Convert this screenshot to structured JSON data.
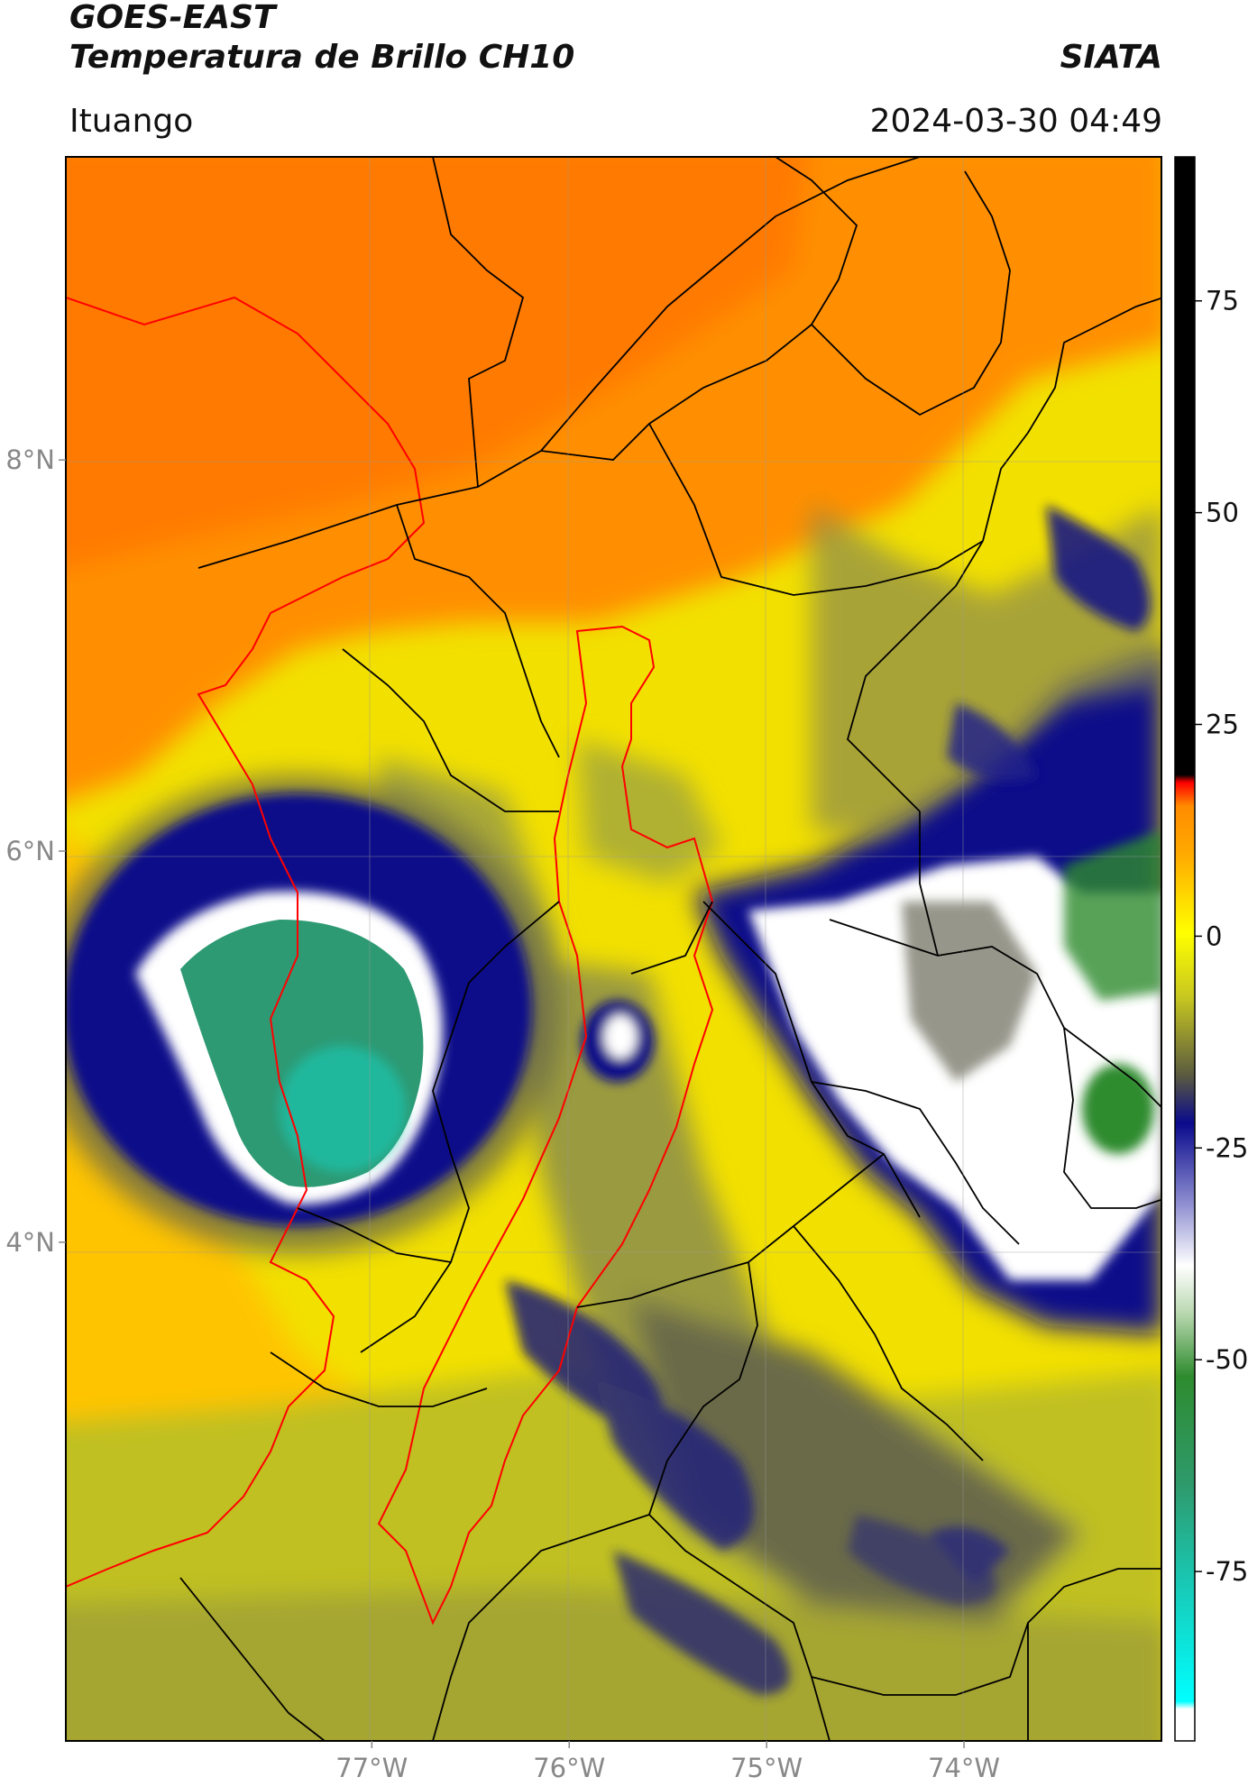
{
  "header": {
    "satellite": "GOES-EAST",
    "product": "Temperatura de Brillo CH10",
    "organization": "SIATA",
    "location": "Ituango",
    "timestamp": "2024-03-30 04:49"
  },
  "map": {
    "lon_range": [
      -78.55,
      -73.0
    ],
    "lat_range": [
      1.45,
      9.55
    ],
    "lon_ticks": [
      {
        "value": -77,
        "label": "77°W"
      },
      {
        "value": -76,
        "label": "76°W"
      },
      {
        "value": -75,
        "label": "75°W"
      },
      {
        "value": -74,
        "label": "74°W"
      }
    ],
    "lat_ticks": [
      {
        "value": 8,
        "label": "8°N"
      },
      {
        "value": 6,
        "label": "6°N"
      },
      {
        "value": 4,
        "label": "4°N"
      }
    ]
  },
  "colorbar": {
    "range": [
      -95,
      92
    ],
    "ticks": [
      {
        "value": 75,
        "label": "75"
      },
      {
        "value": 50,
        "label": "50"
      },
      {
        "value": 25,
        "label": "25"
      },
      {
        "value": 0,
        "label": "0"
      },
      {
        "value": -25,
        "label": "-25"
      },
      {
        "value": -50,
        "label": "-50"
      },
      {
        "value": -75,
        "label": "-75"
      }
    ],
    "colors": {
      "black": "#000000",
      "red": "#ff0000",
      "orange": "#ff8c00",
      "yellow": "#ffff00",
      "olive": "#8c8c2c",
      "navy": "#0a0a8c",
      "white": "#ffffff",
      "green": "#2e8b2e",
      "teal": "#19c8b4",
      "cyan": "#00ffff"
    }
  }
}
